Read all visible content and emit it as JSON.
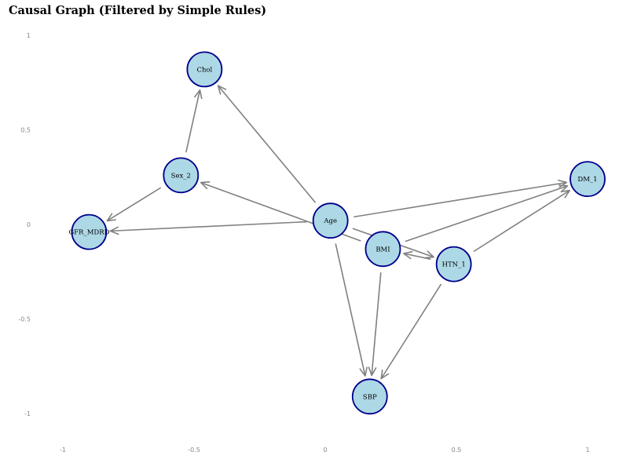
{
  "title": "Causal Graph (Filtered by Simple Rules)",
  "chart_data": {
    "type": "network",
    "directed": true,
    "x_ticks": [
      "-1",
      "-0.5",
      "0",
      "0.5",
      "1"
    ],
    "y_ticks": [
      "1",
      "0.5",
      "0",
      "-0.5",
      "-1"
    ],
    "xlim": [
      -1,
      1
    ],
    "ylim": [
      -1,
      1
    ],
    "colors": {
      "node_fill": "#add8e6",
      "node_stroke": "#00008b",
      "edge": "#808080",
      "tick": "#888888"
    },
    "nodes": [
      {
        "id": "Chol",
        "label": "Chol",
        "x": -0.46,
        "y": 0.82
      },
      {
        "id": "Sex_2",
        "label": "Sex_2",
        "x": -0.55,
        "y": 0.26
      },
      {
        "id": "GFR_MDRD",
        "label": "GFR_MDRD",
        "x": -0.9,
        "y": -0.04
      },
      {
        "id": "Age",
        "label": "Age",
        "x": 0.02,
        "y": 0.02
      },
      {
        "id": "BMI",
        "label": "BMI",
        "x": 0.22,
        "y": -0.13
      },
      {
        "id": "HTN_1",
        "label": "HTN_1",
        "x": 0.49,
        "y": -0.21
      },
      {
        "id": "DM_1",
        "label": "DM_1",
        "x": 1.0,
        "y": 0.24
      },
      {
        "id": "SBP",
        "label": "SBP",
        "x": 0.17,
        "y": -0.91
      }
    ],
    "edges": [
      {
        "from": "Sex_2",
        "to": "Chol"
      },
      {
        "from": "Sex_2",
        "to": "GFR_MDRD"
      },
      {
        "from": "Age",
        "to": "Chol"
      },
      {
        "from": "Age",
        "to": "GFR_MDRD"
      },
      {
        "from": "Age",
        "to": "DM_1"
      },
      {
        "from": "Age",
        "to": "HTN_1"
      },
      {
        "from": "Age",
        "to": "SBP"
      },
      {
        "from": "BMI",
        "to": "Sex_2"
      },
      {
        "from": "BMI",
        "to": "DM_1"
      },
      {
        "from": "BMI",
        "to": "SBP"
      },
      {
        "from": "HTN_1",
        "to": "BMI"
      },
      {
        "from": "HTN_1",
        "to": "DM_1"
      },
      {
        "from": "HTN_1",
        "to": "SBP"
      }
    ]
  }
}
